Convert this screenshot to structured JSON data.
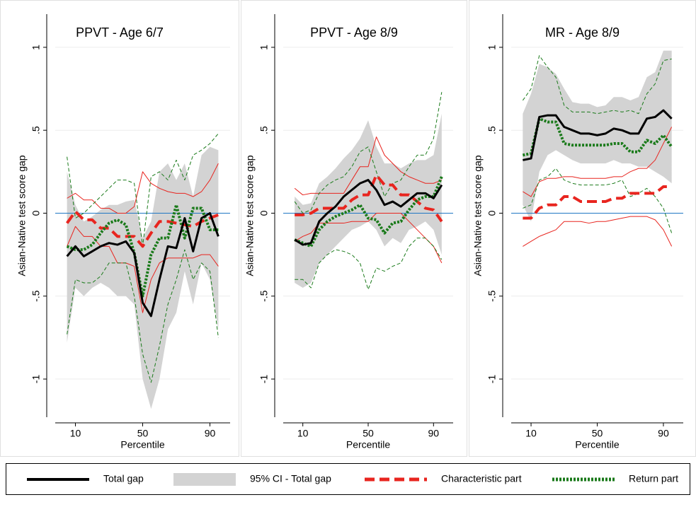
{
  "chart_data": [
    {
      "type": "line",
      "title": "PPVT - Age 6/7",
      "x_label": "Percentile",
      "y_label": "Asian-Native test score gap",
      "x": [
        5,
        10,
        15,
        20,
        25,
        30,
        35,
        40,
        45,
        50,
        55,
        60,
        65,
        70,
        75,
        80,
        85,
        90,
        95
      ],
      "xlim": [
        -2,
        102
      ],
      "xticks": [
        10,
        50,
        90
      ],
      "ylim": [
        -1.23,
        1.2
      ],
      "yticks": [
        -1,
        {
          "value": -0.5,
          "label": "-.5"
        },
        0,
        {
          "value": 0.5,
          "label": ".5"
        },
        1
      ],
      "grid": true,
      "reference_line": 0,
      "reference_color": "#1f77c4",
      "series": [
        {
          "name": "Total gap",
          "color": "#000000",
          "style": "solid",
          "values": [
            -0.26,
            -0.2,
            -0.26,
            -0.23,
            -0.2,
            -0.18,
            -0.19,
            -0.17,
            -0.24,
            -0.54,
            -0.62,
            -0.4,
            -0.2,
            -0.21,
            -0.03,
            -0.23,
            -0.03,
            0.0,
            -0.14
          ]
        },
        {
          "name": "95% CI - Total gap",
          "color": "#d3d3d3",
          "style": "band",
          "lower": [
            -0.78,
            -0.45,
            -0.5,
            -0.45,
            -0.42,
            -0.45,
            -0.5,
            -0.5,
            -0.55,
            -1.0,
            -1.18,
            -1.0,
            -0.7,
            -0.6,
            -0.35,
            -0.55,
            -0.3,
            -0.4,
            -0.7
          ],
          "upper": [
            0.25,
            0.05,
            -0.05,
            -0.02,
            0.02,
            0.05,
            0.05,
            0.07,
            0.08,
            -0.15,
            -0.05,
            0.25,
            0.3,
            0.2,
            0.3,
            0.1,
            0.35,
            0.4,
            0.38
          ]
        },
        {
          "name": "Characteristic part",
          "color": "#e8251f",
          "style": "dashed",
          "values": [
            -0.06,
            0.01,
            -0.04,
            -0.04,
            -0.09,
            -0.09,
            -0.14,
            -0.14,
            -0.14,
            -0.2,
            -0.12,
            -0.05,
            -0.05,
            -0.06,
            -0.07,
            -0.08,
            -0.05,
            -0.03,
            -0.01
          ],
          "ci_lower": [
            -0.2,
            -0.08,
            -0.14,
            -0.14,
            -0.2,
            -0.2,
            -0.3,
            -0.3,
            -0.32,
            -0.6,
            -0.4,
            -0.3,
            -0.27,
            -0.27,
            -0.27,
            -0.27,
            -0.25,
            -0.25,
            -0.32
          ],
          "ci_upper": [
            0.09,
            0.12,
            0.08,
            0.08,
            0.03,
            0.03,
            0.0,
            0.0,
            0.04,
            0.25,
            0.18,
            0.15,
            0.13,
            0.12,
            0.12,
            0.1,
            0.13,
            0.2,
            0.3
          ]
        },
        {
          "name": "Return part",
          "color": "#1a7a1a",
          "style": "dotted",
          "values": [
            -0.2,
            -0.22,
            -0.22,
            -0.19,
            -0.12,
            -0.06,
            -0.04,
            -0.07,
            -0.24,
            -0.5,
            -0.25,
            -0.15,
            -0.15,
            0.05,
            -0.15,
            0.03,
            0.03,
            -0.1,
            -0.1
          ],
          "ci_lower": [
            -0.73,
            -0.4,
            -0.42,
            -0.42,
            -0.38,
            -0.3,
            -0.3,
            -0.3,
            -0.5,
            -0.85,
            -1.02,
            -0.8,
            -0.55,
            -0.4,
            -0.22,
            -0.4,
            -0.3,
            -0.35,
            -0.75
          ],
          "ci_upper": [
            0.34,
            -0.03,
            0.0,
            0.05,
            0.1,
            0.15,
            0.2,
            0.2,
            0.18,
            -0.2,
            0.22,
            0.25,
            0.2,
            0.32,
            0.2,
            0.35,
            0.38,
            0.42,
            0.48
          ]
        }
      ]
    },
    {
      "type": "line",
      "title": "PPVT - Age 8/9",
      "x_label": "Percentile",
      "y_label": "Asian-Native test score gap",
      "x": [
        5,
        10,
        15,
        20,
        25,
        30,
        35,
        40,
        45,
        50,
        55,
        60,
        65,
        70,
        75,
        80,
        85,
        90,
        95
      ],
      "xlim": [
        -2,
        102
      ],
      "xticks": [
        10,
        50,
        90
      ],
      "ylim": [
        -1.23,
        1.2
      ],
      "yticks": [
        -1,
        {
          "value": -0.5,
          "label": "-.5"
        },
        0,
        {
          "value": 0.5,
          "label": ".5"
        },
        1
      ],
      "grid": true,
      "reference_line": 0,
      "reference_color": "#1f77c4",
      "series": [
        {
          "name": "Total gap",
          "color": "#000000",
          "style": "solid",
          "values": [
            -0.16,
            -0.19,
            -0.18,
            -0.05,
            0.0,
            0.04,
            0.1,
            0.14,
            0.18,
            0.2,
            0.14,
            0.05,
            0.07,
            0.04,
            0.08,
            0.12,
            0.12,
            0.09,
            0.17
          ]
        },
        {
          "name": "95% CI - Total gap",
          "color": "#d3d3d3",
          "style": "band",
          "lower": [
            -0.42,
            -0.45,
            -0.42,
            -0.3,
            -0.25,
            -0.2,
            -0.15,
            -0.1,
            -0.08,
            -0.05,
            -0.1,
            -0.2,
            -0.15,
            -0.18,
            -0.1,
            -0.08,
            -0.05,
            -0.1,
            -0.25
          ],
          "upper": [
            0.1,
            0.05,
            0.06,
            0.18,
            0.22,
            0.27,
            0.33,
            0.38,
            0.45,
            0.56,
            0.4,
            0.3,
            0.3,
            0.27,
            0.3,
            0.32,
            0.32,
            0.35,
            0.6
          ]
        },
        {
          "name": "Characteristic part",
          "color": "#e8251f",
          "style": "dashed",
          "values": [
            -0.01,
            -0.01,
            0.0,
            0.03,
            0.03,
            0.03,
            0.03,
            0.08,
            0.11,
            0.11,
            0.23,
            0.17,
            0.17,
            0.11,
            0.11,
            0.07,
            0.03,
            0.02,
            -0.05
          ],
          "ci_lower": [
            -0.17,
            -0.14,
            -0.12,
            -0.06,
            -0.06,
            -0.06,
            -0.06,
            -0.05,
            -0.05,
            -0.05,
            0.0,
            0.0,
            0.0,
            0.0,
            -0.05,
            -0.1,
            -0.15,
            -0.2,
            -0.3
          ],
          "ci_upper": [
            0.15,
            0.11,
            0.12,
            0.12,
            0.12,
            0.12,
            0.12,
            0.2,
            0.28,
            0.28,
            0.46,
            0.35,
            0.3,
            0.25,
            0.22,
            0.2,
            0.18,
            0.18,
            0.2
          ]
        },
        {
          "name": "Return part",
          "color": "#1a7a1a",
          "style": "dotted",
          "values": [
            -0.16,
            -0.18,
            -0.2,
            -0.1,
            -0.05,
            -0.02,
            0.0,
            0.02,
            0.05,
            -0.03,
            -0.04,
            -0.12,
            -0.06,
            -0.05,
            0.02,
            0.08,
            0.1,
            0.1,
            0.22
          ],
          "ci_lower": [
            -0.4,
            -0.4,
            -0.45,
            -0.3,
            -0.25,
            -0.22,
            -0.23,
            -0.25,
            -0.3,
            -0.46,
            -0.33,
            -0.35,
            -0.32,
            -0.3,
            -0.2,
            -0.15,
            -0.15,
            -0.2,
            -0.28
          ],
          "ci_upper": [
            0.07,
            0.0,
            0.02,
            0.12,
            0.17,
            0.2,
            0.22,
            0.28,
            0.37,
            0.4,
            0.25,
            0.1,
            0.18,
            0.2,
            0.28,
            0.35,
            0.35,
            0.45,
            0.73
          ]
        }
      ]
    },
    {
      "type": "line",
      "title": "MR - Age 8/9",
      "x_label": "Percentile",
      "y_label": "Asian-Native test score gap",
      "x": [
        5,
        10,
        15,
        20,
        25,
        30,
        35,
        40,
        45,
        50,
        55,
        60,
        65,
        70,
        75,
        80,
        85,
        90,
        95
      ],
      "xlim": [
        -2,
        102
      ],
      "xticks": [
        10,
        50,
        90
      ],
      "ylim": [
        -1.23,
        1.2
      ],
      "yticks": [
        -1,
        {
          "value": -0.5,
          "label": "-.5"
        },
        0,
        {
          "value": 0.5,
          "label": ".5"
        },
        1
      ],
      "grid": true,
      "reference_line": 0,
      "reference_color": "#1f77c4",
      "series": [
        {
          "name": "Total gap",
          "color": "#000000",
          "style": "solid",
          "values": [
            0.32,
            0.33,
            0.58,
            0.59,
            0.59,
            0.52,
            0.5,
            0.48,
            0.48,
            0.47,
            0.48,
            0.51,
            0.5,
            0.48,
            0.48,
            0.57,
            0.58,
            0.62,
            0.57
          ]
        },
        {
          "name": "95% CI - Total gap",
          "color": "#d3d3d3",
          "style": "band",
          "lower": [
            0.05,
            -0.05,
            0.25,
            0.35,
            0.38,
            0.35,
            0.32,
            0.3,
            0.3,
            0.3,
            0.3,
            0.32,
            0.3,
            0.3,
            0.28,
            0.28,
            0.25,
            0.22,
            0.18
          ],
          "upper": [
            0.6,
            0.72,
            0.9,
            0.88,
            0.84,
            0.75,
            0.67,
            0.66,
            0.66,
            0.64,
            0.65,
            0.7,
            0.7,
            0.68,
            0.7,
            0.82,
            0.85,
            0.98,
            0.98
          ]
        },
        {
          "name": "Characteristic part",
          "color": "#e8251f",
          "style": "dashed",
          "values": [
            -0.03,
            -0.03,
            0.03,
            0.05,
            0.05,
            0.1,
            0.1,
            0.07,
            0.07,
            0.07,
            0.07,
            0.09,
            0.09,
            0.12,
            0.12,
            0.12,
            0.12,
            0.16,
            0.16
          ],
          "ci_lower": [
            -0.2,
            -0.17,
            -0.14,
            -0.12,
            -0.1,
            -0.05,
            -0.05,
            -0.05,
            -0.06,
            -0.05,
            -0.05,
            -0.04,
            -0.03,
            -0.02,
            -0.02,
            -0.02,
            -0.04,
            -0.1,
            -0.2
          ],
          "ci_upper": [
            0.13,
            0.1,
            0.19,
            0.21,
            0.21,
            0.22,
            0.22,
            0.21,
            0.21,
            0.21,
            0.21,
            0.22,
            0.22,
            0.25,
            0.27,
            0.27,
            0.32,
            0.42,
            0.52
          ]
        },
        {
          "name": "Return part",
          "color": "#1a7a1a",
          "style": "dotted",
          "values": [
            0.35,
            0.36,
            0.57,
            0.55,
            0.55,
            0.42,
            0.41,
            0.41,
            0.41,
            0.41,
            0.41,
            0.42,
            0.42,
            0.37,
            0.37,
            0.44,
            0.42,
            0.47,
            0.4
          ],
          "ci_lower": [
            0.03,
            0.05,
            0.2,
            0.22,
            0.27,
            0.2,
            0.18,
            0.17,
            0.17,
            0.17,
            0.17,
            0.18,
            0.2,
            0.1,
            0.12,
            0.15,
            0.1,
            0.03,
            -0.12
          ],
          "ci_upper": [
            0.68,
            0.75,
            0.95,
            0.88,
            0.82,
            0.65,
            0.61,
            0.61,
            0.61,
            0.6,
            0.61,
            0.62,
            0.61,
            0.62,
            0.6,
            0.72,
            0.78,
            0.92,
            0.93
          ]
        }
      ]
    }
  ]
}
